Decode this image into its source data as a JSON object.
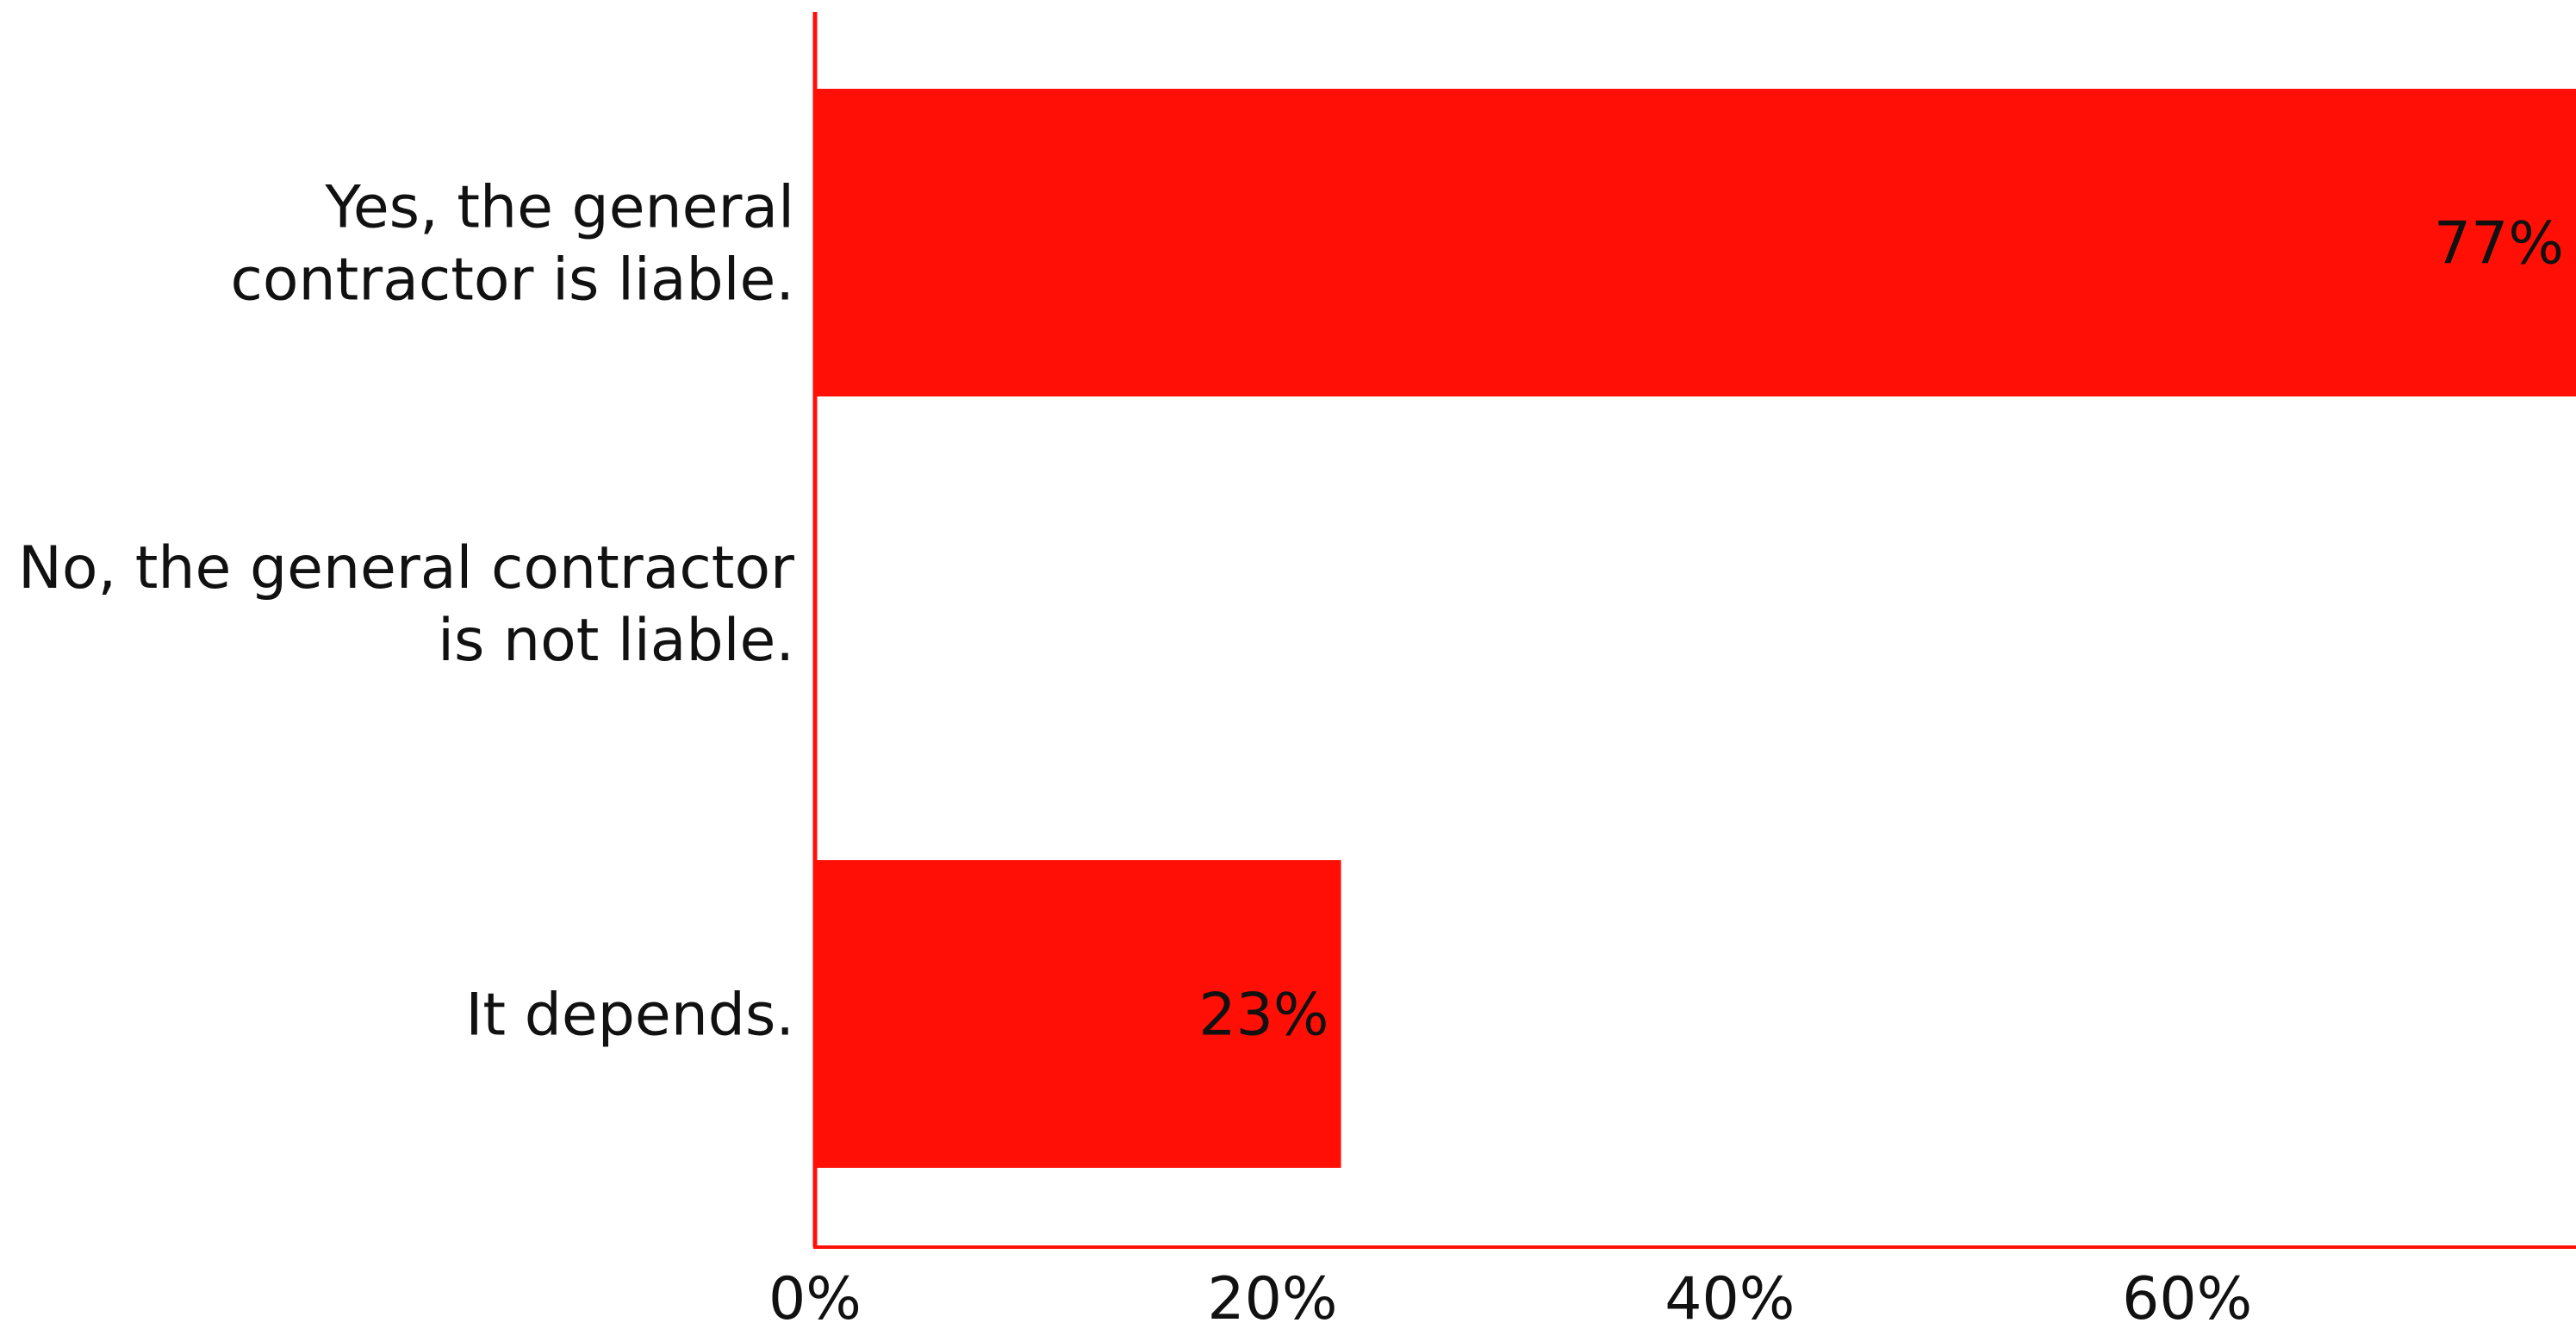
{
  "chart_data": {
    "type": "bar",
    "orientation": "horizontal",
    "categories": [
      [
        "Yes, the general",
        "contractor is liable."
      ],
      [
        "No, the general contractor",
        "is not liable."
      ],
      [
        "It depends."
      ]
    ],
    "values": [
      77,
      0,
      23
    ],
    "data_labels": [
      "77%",
      "",
      "23%"
    ],
    "x_ticks": [
      0,
      20,
      40,
      60
    ],
    "x_tick_labels": [
      "0%",
      "20%",
      "40%",
      "60%"
    ],
    "xlim": [
      0,
      77
    ],
    "title": "",
    "xlabel": "",
    "ylabel": "",
    "grid": false,
    "legend": "none",
    "bar_color": "#ff0f05",
    "axis_color": "#ff0f05"
  }
}
